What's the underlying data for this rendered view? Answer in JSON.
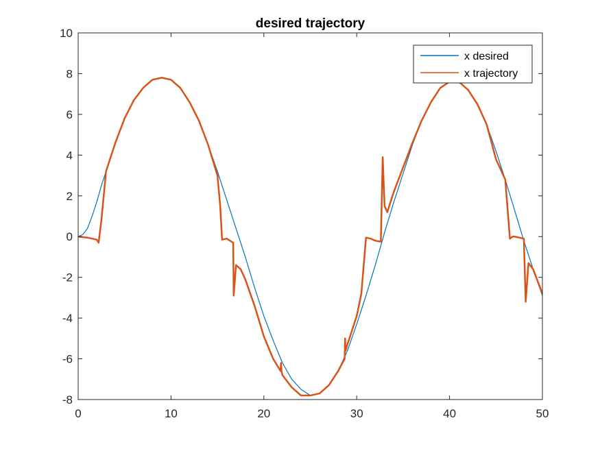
{
  "chart_data": {
    "type": "line",
    "title": "desired trajectory",
    "xlabel": "",
    "ylabel": "",
    "xlim": [
      0,
      50
    ],
    "ylim": [
      -8,
      10
    ],
    "xticks": [
      0,
      10,
      20,
      30,
      40,
      50
    ],
    "yticks": [
      -8,
      -6,
      -4,
      -2,
      0,
      2,
      4,
      6,
      8,
      10
    ],
    "grid": false,
    "legend_position": "top-right",
    "series": [
      {
        "name": "x desired",
        "color": "#0072BD",
        "x": [
          0,
          0.5,
          1,
          1.5,
          2,
          2.5,
          3,
          4,
          5,
          6,
          7,
          8,
          9,
          10,
          11,
          12,
          13,
          14,
          15,
          16,
          17,
          18,
          19,
          20,
          21,
          22,
          23,
          24,
          25,
          26,
          27,
          28,
          29,
          30,
          31,
          32,
          33,
          34,
          35,
          36,
          37,
          38,
          39,
          40,
          41,
          42,
          43,
          44,
          45,
          46,
          47,
          48,
          49,
          50
        ],
        "y": [
          0,
          0.1,
          0.4,
          1.0,
          1.7,
          2.5,
          3.2,
          4.6,
          5.8,
          6.7,
          7.3,
          7.7,
          7.8,
          7.7,
          7.3,
          6.6,
          5.7,
          4.5,
          3.2,
          1.8,
          0.4,
          -1.0,
          -2.5,
          -3.9,
          -5.1,
          -6.2,
          -7.0,
          -7.5,
          -7.8,
          -7.7,
          -7.3,
          -6.6,
          -5.6,
          -4.3,
          -2.9,
          -1.4,
          0.2,
          1.7,
          3.1,
          4.5,
          5.7,
          6.6,
          7.3,
          7.6,
          7.6,
          7.2,
          6.5,
          5.5,
          4.2,
          2.8,
          1.3,
          -0.2,
          -1.6,
          -2.9
        ]
      },
      {
        "name": "x trajectory",
        "color": "#D95319",
        "x": [
          0,
          1,
          2,
          2.2,
          2.5,
          3,
          4,
          5,
          6,
          7,
          8,
          9,
          10,
          11,
          12,
          13,
          14,
          15,
          15.3,
          15.5,
          16,
          16.7,
          16.75,
          17,
          17.5,
          18,
          19,
          20,
          21,
          21.8,
          21.85,
          21.9,
          22,
          23,
          24,
          25,
          26,
          27,
          28,
          28.7,
          28.75,
          28.8,
          29,
          30,
          30.5,
          31,
          31.5,
          32,
          32.6,
          32.8,
          33,
          33.3,
          33.5,
          34,
          35,
          36,
          37,
          38,
          39,
          40,
          41,
          42,
          43,
          44,
          45,
          46,
          46.5,
          46.8,
          47,
          47.5,
          48,
          48.2,
          48.5,
          49,
          50
        ],
        "y": [
          0,
          -0.05,
          -0.15,
          -0.3,
          0.8,
          3.2,
          4.6,
          5.8,
          6.7,
          7.3,
          7.7,
          7.8,
          7.7,
          7.3,
          6.6,
          5.7,
          4.5,
          3.0,
          1.5,
          -0.15,
          -0.1,
          -0.3,
          -2.9,
          -1.4,
          -1.6,
          -2.1,
          -3.4,
          -4.9,
          -6.0,
          -6.6,
          -6.2,
          -6.6,
          -6.8,
          -7.4,
          -7.8,
          -7.8,
          -7.7,
          -7.3,
          -6.6,
          -6.0,
          -5.0,
          -5.6,
          -5.3,
          -3.9,
          -2.8,
          -0.05,
          -0.1,
          -0.2,
          -0.25,
          3.9,
          1.5,
          1.2,
          1.5,
          2.2,
          3.4,
          4.6,
          5.7,
          6.6,
          7.3,
          7.6,
          7.6,
          7.2,
          6.5,
          5.5,
          3.8,
          2.8,
          -0.1,
          0.0,
          0.0,
          -0.05,
          -0.1,
          -3.2,
          -1.3,
          -1.6,
          -2.8
        ]
      }
    ]
  }
}
